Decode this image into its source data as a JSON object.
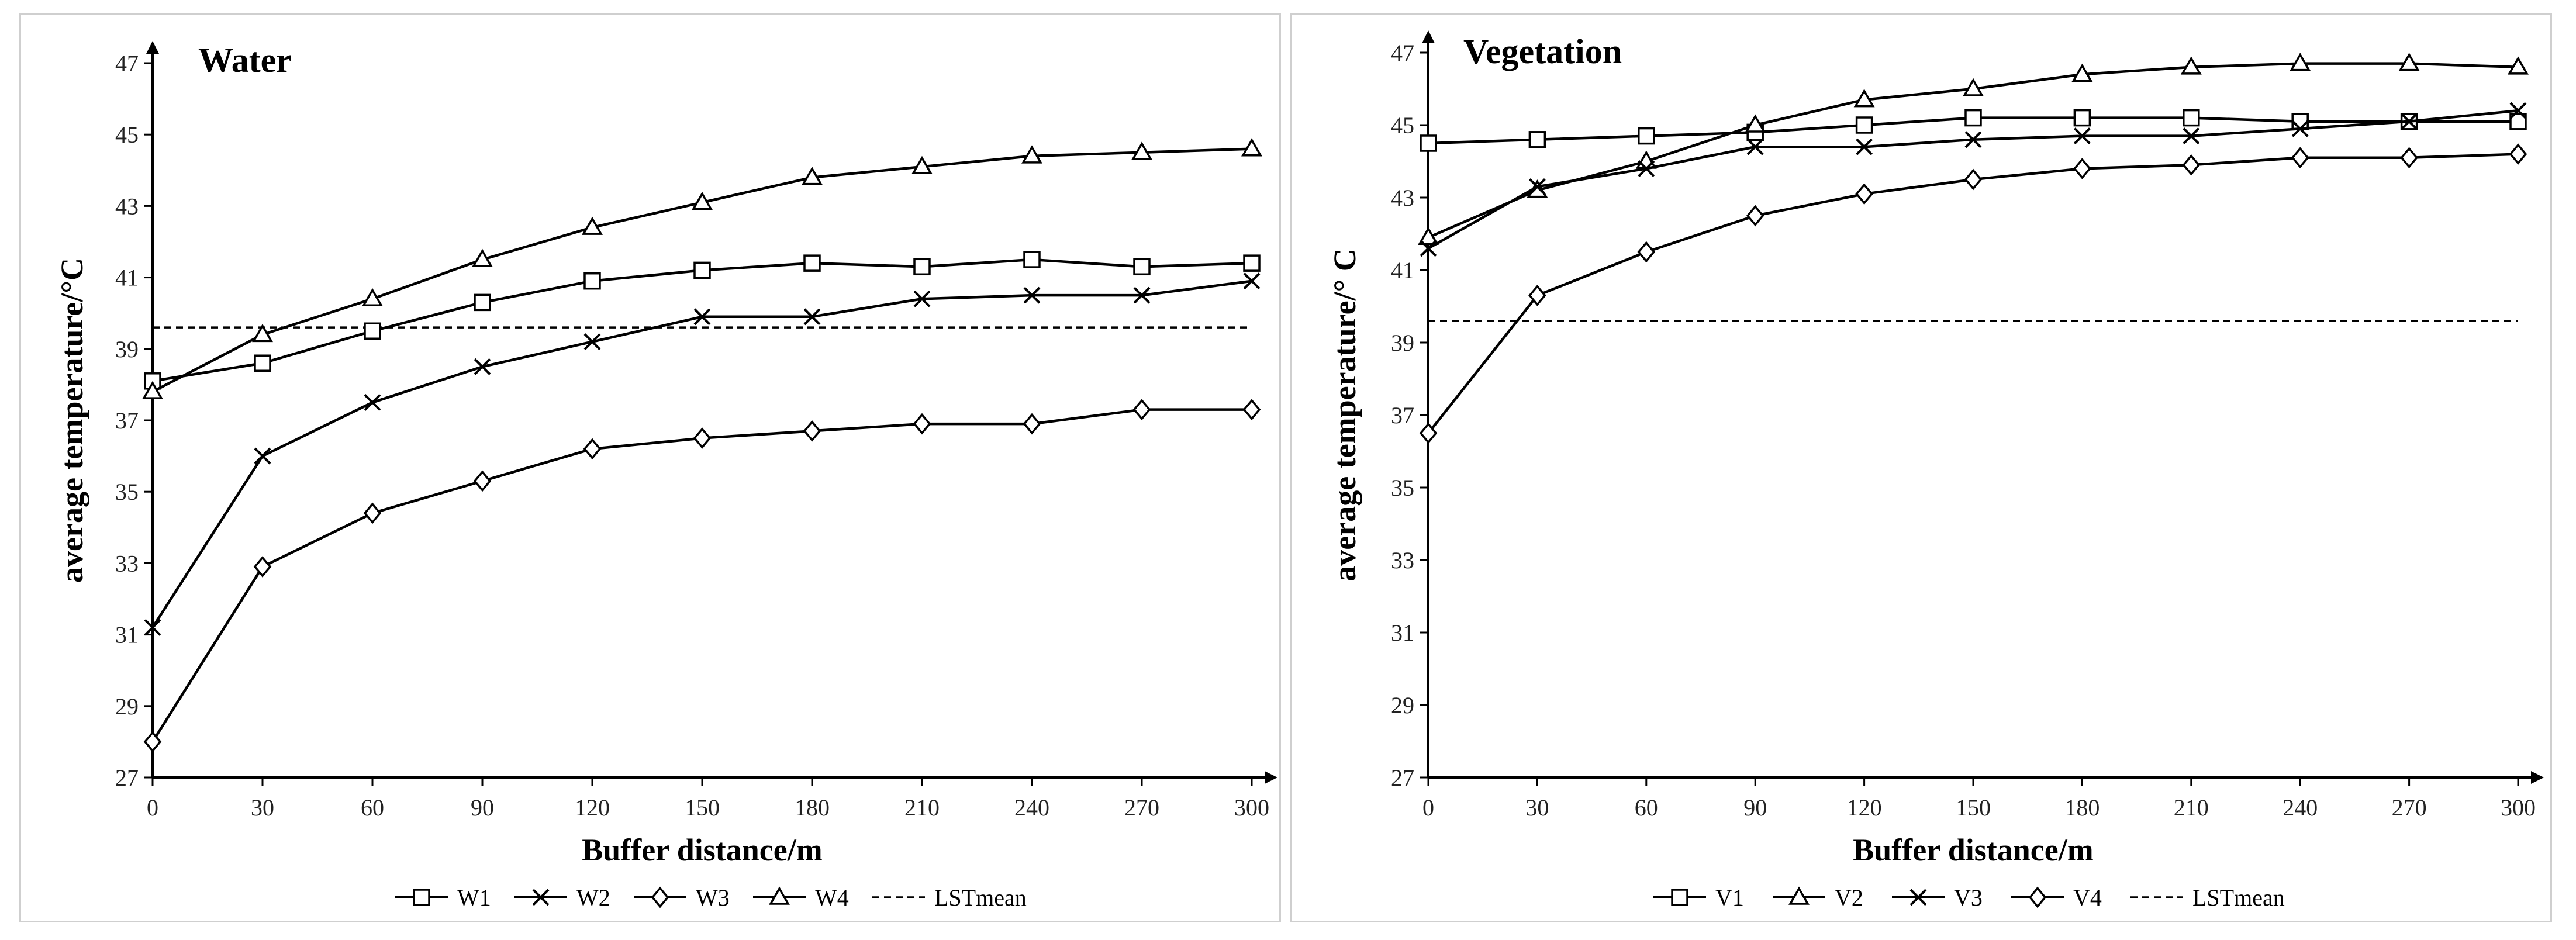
{
  "chart_data": [
    {
      "id": "water",
      "type": "line",
      "title": "Water",
      "xlabel": "Buffer distance/m",
      "ylabel": "average temperature/°C",
      "x": [
        0,
        30,
        60,
        90,
        120,
        150,
        180,
        210,
        240,
        270,
        300
      ],
      "xticks": [
        "0",
        "30",
        "60",
        "90",
        "120",
        "150",
        "180",
        "210",
        "240",
        "270",
        "300"
      ],
      "yticks": [
        "27",
        "29",
        "31",
        "33",
        "35",
        "37",
        "39",
        "41",
        "43",
        "45",
        "47"
      ],
      "xlim": [
        0,
        300
      ],
      "ylim": [
        27,
        47
      ],
      "grid": false,
      "legend_position": "bottom",
      "series": [
        {
          "name": "W1",
          "marker": "square",
          "values": [
            38.1,
            38.6,
            39.5,
            40.3,
            40.9,
            41.2,
            41.4,
            41.3,
            41.5,
            41.3,
            41.4
          ]
        },
        {
          "name": "W2",
          "marker": "x",
          "values": [
            31.2,
            36.0,
            37.5,
            38.5,
            39.2,
            39.9,
            39.9,
            40.4,
            40.5,
            40.5,
            40.9
          ]
        },
        {
          "name": "W3",
          "marker": "diamond",
          "values": [
            28.0,
            32.9,
            34.4,
            35.3,
            36.2,
            36.5,
            36.7,
            36.9,
            36.9,
            37.3,
            37.3
          ]
        },
        {
          "name": "W4",
          "marker": "triangle",
          "values": [
            37.8,
            39.4,
            40.4,
            41.5,
            42.4,
            43.1,
            43.8,
            44.1,
            44.4,
            44.5,
            44.6
          ]
        }
      ],
      "reference_line": {
        "name": "LSTmean",
        "value": 39.6
      }
    },
    {
      "id": "veg",
      "type": "line",
      "title": "Vegetation",
      "xlabel": "Buffer distance/m",
      "ylabel": "average temperature/°  C",
      "x": [
        0,
        30,
        60,
        90,
        120,
        150,
        180,
        210,
        240,
        270,
        300
      ],
      "xticks": [
        "0",
        "30",
        "60",
        "90",
        "120",
        "150",
        "180",
        "210",
        "240",
        "270",
        "300"
      ],
      "yticks": [
        "27",
        "29",
        "31",
        "33",
        "35",
        "37",
        "39",
        "41",
        "43",
        "45",
        "47"
      ],
      "xlim": [
        0,
        300
      ],
      "ylim": [
        27,
        47
      ],
      "grid": false,
      "legend_position": "bottom",
      "series": [
        {
          "name": "V1",
          "marker": "square",
          "values": [
            44.5,
            44.6,
            44.7,
            44.8,
            45.0,
            45.2,
            45.2,
            45.2,
            45.1,
            45.1,
            45.1
          ]
        },
        {
          "name": "V2",
          "marker": "triangle",
          "values": [
            41.9,
            43.2,
            44.0,
            45.0,
            45.7,
            46.0,
            46.4,
            46.6,
            46.7,
            46.7,
            46.6
          ]
        },
        {
          "name": "V3",
          "marker": "x",
          "values": [
            41.6,
            43.3,
            43.8,
            44.4,
            44.4,
            44.6,
            44.7,
            44.7,
            44.9,
            45.1,
            45.4
          ]
        },
        {
          "name": "V4",
          "marker": "diamond",
          "values": [
            36.5,
            40.3,
            41.5,
            42.5,
            43.1,
            43.5,
            43.8,
            43.9,
            44.1,
            44.1,
            44.2
          ]
        }
      ],
      "reference_line": {
        "name": "LSTmean",
        "value": 39.6
      }
    }
  ]
}
